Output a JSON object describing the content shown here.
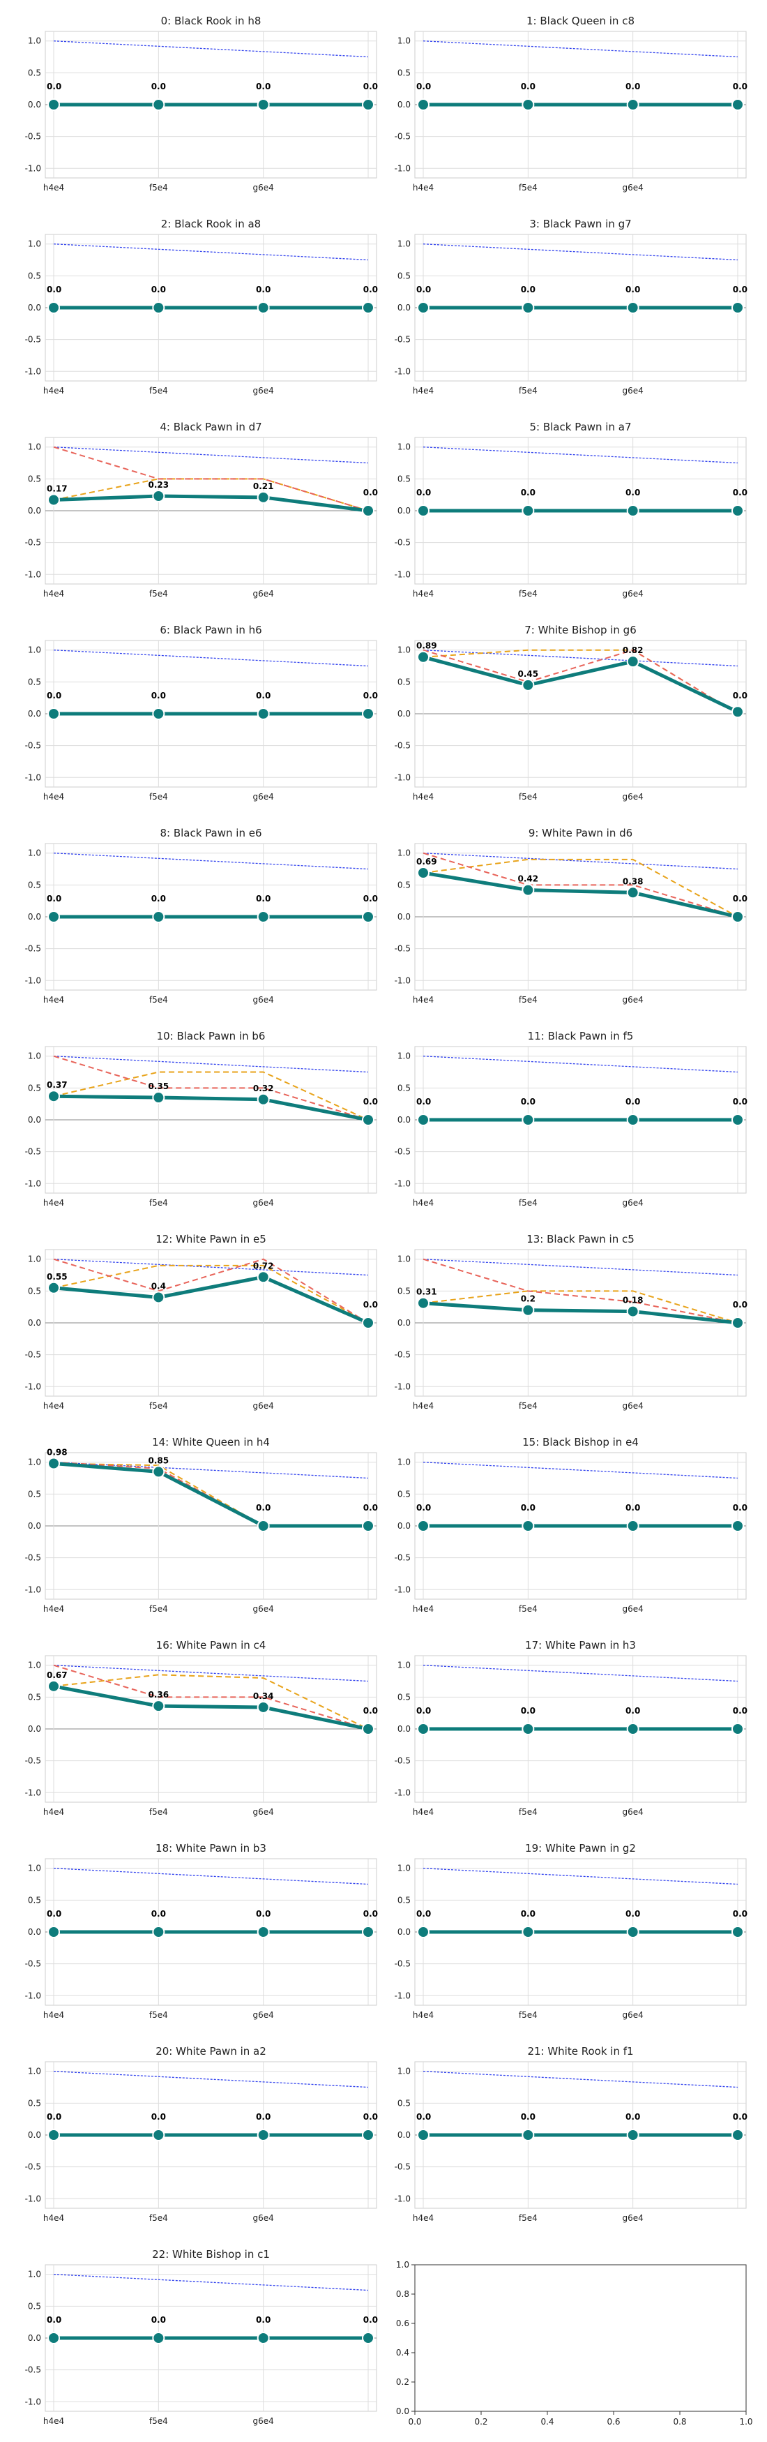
{
  "colors": {
    "main": "#0e7c7b",
    "reference": "#3344ee",
    "series_a": "#e8a31a",
    "series_b": "#e8645a",
    "grid": "#dddddd",
    "zero": "#888888",
    "frame": "#cccccc"
  },
  "chart_data": [
    {
      "type": "line",
      "title": "0: Black Rook in h8",
      "categories": [
        "h4e4",
        "f5e4",
        "g6e4",
        ""
      ],
      "ylim": [
        -1.15,
        1.15
      ],
      "yticks": [
        "1.0",
        "0.5",
        "0.0",
        "-0.5",
        "-1.0"
      ],
      "series": [
        {
          "values": [
            0,
            0,
            0,
            0
          ],
          "labels": [
            "0.0",
            "0.0",
            "0.0",
            "0.0"
          ]
        }
      ],
      "reference_line": [
        1.0,
        0.75
      ]
    },
    {
      "type": "line",
      "title": "1: Black Queen in c8",
      "categories": [
        "h4e4",
        "f5e4",
        "g6e4",
        ""
      ],
      "ylim": [
        -1.15,
        1.15
      ],
      "yticks": [
        "1.0",
        "0.5",
        "0.0",
        "-0.5",
        "-1.0"
      ],
      "series": [
        {
          "values": [
            0,
            0,
            0,
            0
          ],
          "labels": [
            "0.0",
            "0.0",
            "0.0",
            "0.0"
          ]
        }
      ],
      "reference_line": [
        1.0,
        0.75
      ]
    },
    {
      "type": "line",
      "title": "2: Black Rook in a8",
      "categories": [
        "h4e4",
        "f5e4",
        "g6e4",
        ""
      ],
      "ylim": [
        -1.15,
        1.15
      ],
      "yticks": [
        "1.0",
        "0.5",
        "0.0",
        "-0.5",
        "-1.0"
      ],
      "series": [
        {
          "values": [
            0,
            0,
            0,
            0
          ],
          "labels": [
            "0.0",
            "0.0",
            "0.0",
            "0.0"
          ]
        }
      ],
      "reference_line": [
        1.0,
        0.75
      ]
    },
    {
      "type": "line",
      "title": "3: Black Pawn in g7",
      "categories": [
        "h4e4",
        "f5e4",
        "g6e4",
        ""
      ],
      "ylim": [
        -1.15,
        1.15
      ],
      "yticks": [
        "1.0",
        "0.5",
        "0.0",
        "-0.5",
        "-1.0"
      ],
      "series": [
        {
          "values": [
            0,
            0,
            0,
            0
          ],
          "labels": [
            "0.0",
            "0.0",
            "0.0",
            "0.0"
          ]
        }
      ],
      "reference_line": [
        1.0,
        0.75
      ]
    },
    {
      "type": "line",
      "title": "4: Black Pawn in d7",
      "categories": [
        "h4e4",
        "f5e4",
        "g6e4",
        ""
      ],
      "ylim": [
        -1.15,
        1.15
      ],
      "yticks": [
        "1.0",
        "0.5",
        "0.0",
        "-0.5",
        "-1.0"
      ],
      "series": [
        {
          "values": [
            0.17,
            0.23,
            0.21,
            0
          ],
          "labels": [
            "0.17",
            "0.23",
            "0.21",
            "0.0"
          ]
        },
        {
          "values": [
            0.17,
            0.5,
            0.5,
            0
          ]
        },
        {
          "values": [
            1.0,
            0.5,
            0.5,
            0
          ]
        }
      ],
      "reference_line": [
        1.0,
        0.75
      ]
    },
    {
      "type": "line",
      "title": "5: Black Pawn in a7",
      "categories": [
        "h4e4",
        "f5e4",
        "g6e4",
        ""
      ],
      "ylim": [
        -1.15,
        1.15
      ],
      "yticks": [
        "1.0",
        "0.5",
        "0.0",
        "-0.5",
        "-1.0"
      ],
      "series": [
        {
          "values": [
            0,
            0,
            0,
            0
          ],
          "labels": [
            "0.0",
            "0.0",
            "0.0",
            "0.0"
          ]
        }
      ],
      "reference_line": [
        1.0,
        0.75
      ]
    },
    {
      "type": "line",
      "title": "6: Black Pawn in h6",
      "categories": [
        "h4e4",
        "f5e4",
        "g6e4",
        ""
      ],
      "ylim": [
        -1.15,
        1.15
      ],
      "yticks": [
        "1.0",
        "0.5",
        "0.0",
        "-0.5",
        "-1.0"
      ],
      "series": [
        {
          "values": [
            0,
            0,
            0,
            0
          ],
          "labels": [
            "0.0",
            "0.0",
            "0.0",
            "0.0"
          ]
        }
      ],
      "reference_line": [
        1.0,
        0.75
      ]
    },
    {
      "type": "line",
      "title": "7: White Bishop in g6",
      "categories": [
        "h4e4",
        "f5e4",
        "g6e4",
        ""
      ],
      "ylim": [
        -1.15,
        1.15
      ],
      "yticks": [
        "1.0",
        "0.5",
        "0.0",
        "-0.5",
        "-1.0"
      ],
      "series": [
        {
          "values": [
            0.89,
            0.45,
            0.82,
            0.03
          ],
          "labels": [
            "0.89",
            "0.45",
            "0.82",
            "0.0"
          ]
        },
        {
          "values": [
            0.89,
            1.0,
            1.0,
            0
          ]
        },
        {
          "values": [
            1.0,
            0.5,
            1.0,
            0
          ]
        }
      ],
      "reference_line": [
        1.0,
        0.75
      ]
    },
    {
      "type": "line",
      "title": "8: Black Pawn in e6",
      "categories": [
        "h4e4",
        "f5e4",
        "g6e4",
        ""
      ],
      "ylim": [
        -1.15,
        1.15
      ],
      "yticks": [
        "1.0",
        "0.5",
        "0.0",
        "-0.5",
        "-1.0"
      ],
      "series": [
        {
          "values": [
            0,
            0,
            0,
            0
          ],
          "labels": [
            "0.0",
            "0.0",
            "0.0",
            "0.0"
          ]
        }
      ],
      "reference_line": [
        1.0,
        0.75
      ]
    },
    {
      "type": "line",
      "title": "9: White Pawn in d6",
      "categories": [
        "h4e4",
        "f5e4",
        "g6e4",
        ""
      ],
      "ylim": [
        -1.15,
        1.15
      ],
      "yticks": [
        "1.0",
        "0.5",
        "0.0",
        "-0.5",
        "-1.0"
      ],
      "series": [
        {
          "values": [
            0.69,
            0.42,
            0.38,
            0
          ],
          "labels": [
            "0.69",
            "0.42",
            "0.38",
            "0.0"
          ]
        },
        {
          "values": [
            0.69,
            0.9,
            0.9,
            0
          ]
        },
        {
          "values": [
            1.0,
            0.5,
            0.5,
            0
          ]
        }
      ],
      "reference_line": [
        1.0,
        0.75
      ]
    },
    {
      "type": "line",
      "title": "10: Black Pawn in b6",
      "categories": [
        "h4e4",
        "f5e4",
        "g6e4",
        ""
      ],
      "ylim": [
        -1.15,
        1.15
      ],
      "yticks": [
        "1.0",
        "0.5",
        "0.0",
        "-0.5",
        "-1.0"
      ],
      "series": [
        {
          "values": [
            0.37,
            0.35,
            0.32,
            0
          ],
          "labels": [
            "0.37",
            "0.35",
            "0.32",
            "0.0"
          ]
        },
        {
          "values": [
            0.37,
            0.75,
            0.75,
            0
          ]
        },
        {
          "values": [
            1.0,
            0.5,
            0.5,
            0
          ]
        }
      ],
      "reference_line": [
        1.0,
        0.75
      ]
    },
    {
      "type": "line",
      "title": "11: Black Pawn in f5",
      "categories": [
        "h4e4",
        "f5e4",
        "g6e4",
        ""
      ],
      "ylim": [
        -1.15,
        1.15
      ],
      "yticks": [
        "1.0",
        "0.5",
        "0.0",
        "-0.5",
        "-1.0"
      ],
      "series": [
        {
          "values": [
            0,
            0,
            0,
            0
          ],
          "labels": [
            "0.0",
            "0.0",
            "0.0",
            "0.0"
          ]
        }
      ],
      "reference_line": [
        1.0,
        0.75
      ]
    },
    {
      "type": "line",
      "title": "12: White Pawn in e5",
      "categories": [
        "h4e4",
        "f5e4",
        "g6e4",
        ""
      ],
      "ylim": [
        -1.15,
        1.15
      ],
      "yticks": [
        "1.0",
        "0.5",
        "0.0",
        "-0.5",
        "-1.0"
      ],
      "series": [
        {
          "values": [
            0.55,
            0.4,
            0.72,
            0
          ],
          "labels": [
            "0.55",
            "0.4",
            "0.72",
            "0.0"
          ]
        },
        {
          "values": [
            0.55,
            0.9,
            0.9,
            0
          ]
        },
        {
          "values": [
            1.0,
            0.5,
            1.0,
            0
          ]
        }
      ],
      "reference_line": [
        1.0,
        0.75
      ]
    },
    {
      "type": "line",
      "title": "13: Black Pawn in c5",
      "categories": [
        "h4e4",
        "f5e4",
        "g6e4",
        ""
      ],
      "ylim": [
        -1.15,
        1.15
      ],
      "yticks": [
        "1.0",
        "0.5",
        "0.0",
        "-0.5",
        "-1.0"
      ],
      "series": [
        {
          "values": [
            0.31,
            0.2,
            0.18,
            0
          ],
          "labels": [
            "0.31",
            "0.2",
            "0.18",
            "0.0"
          ]
        },
        {
          "values": [
            0.31,
            0.5,
            0.5,
            0
          ]
        },
        {
          "values": [
            1.0,
            0.5,
            0.33,
            0
          ]
        }
      ],
      "reference_line": [
        1.0,
        0.75
      ]
    },
    {
      "type": "line",
      "title": "14: White Queen in h4",
      "categories": [
        "h4e4",
        "f5e4",
        "g6e4",
        ""
      ],
      "ylim": [
        -1.15,
        1.15
      ],
      "yticks": [
        "1.0",
        "0.5",
        "0.0",
        "-0.5",
        "-1.0"
      ],
      "series": [
        {
          "values": [
            0.98,
            0.85,
            0,
            0
          ],
          "labels": [
            "0.98",
            "0.85",
            "0.0",
            "0.0"
          ]
        },
        {
          "values": [
            0.98,
            0.95,
            0,
            0
          ]
        },
        {
          "values": [
            1.0,
            0.9,
            0,
            0
          ]
        }
      ],
      "reference_line": [
        1.0,
        0.75
      ]
    },
    {
      "type": "line",
      "title": "15: Black Bishop in e4",
      "categories": [
        "h4e4",
        "f5e4",
        "g6e4",
        ""
      ],
      "ylim": [
        -1.15,
        1.15
      ],
      "yticks": [
        "1.0",
        "0.5",
        "0.0",
        "-0.5",
        "-1.0"
      ],
      "series": [
        {
          "values": [
            0,
            0,
            0,
            0
          ],
          "labels": [
            "0.0",
            "0.0",
            "0.0",
            "0.0"
          ]
        }
      ],
      "reference_line": [
        1.0,
        0.75
      ]
    },
    {
      "type": "line",
      "title": "16: White Pawn in c4",
      "categories": [
        "h4e4",
        "f5e4",
        "g6e4",
        ""
      ],
      "ylim": [
        -1.15,
        1.15
      ],
      "yticks": [
        "1.0",
        "0.5",
        "0.0",
        "-0.5",
        "-1.0"
      ],
      "series": [
        {
          "values": [
            0.67,
            0.36,
            0.34,
            0
          ],
          "labels": [
            "0.67",
            "0.36",
            "0.34",
            "0.0"
          ]
        },
        {
          "values": [
            0.67,
            0.85,
            0.8,
            0
          ]
        },
        {
          "values": [
            1.0,
            0.5,
            0.5,
            0
          ]
        }
      ],
      "reference_line": [
        1.0,
        0.75
      ]
    },
    {
      "type": "line",
      "title": "17: White Pawn in h3",
      "categories": [
        "h4e4",
        "f5e4",
        "g6e4",
        ""
      ],
      "ylim": [
        -1.15,
        1.15
      ],
      "yticks": [
        "1.0",
        "0.5",
        "0.0",
        "-0.5",
        "-1.0"
      ],
      "series": [
        {
          "values": [
            0,
            0,
            0,
            0
          ],
          "labels": [
            "0.0",
            "0.0",
            "0.0",
            "0.0"
          ]
        }
      ],
      "reference_line": [
        1.0,
        0.75
      ]
    },
    {
      "type": "line",
      "title": "18: White Pawn in b3",
      "categories": [
        "h4e4",
        "f5e4",
        "g6e4",
        ""
      ],
      "ylim": [
        -1.15,
        1.15
      ],
      "yticks": [
        "1.0",
        "0.5",
        "0.0",
        "-0.5",
        "-1.0"
      ],
      "series": [
        {
          "values": [
            0,
            0,
            0,
            0
          ],
          "labels": [
            "0.0",
            "0.0",
            "0.0",
            "0.0"
          ]
        }
      ],
      "reference_line": [
        1.0,
        0.75
      ]
    },
    {
      "type": "line",
      "title": "19: White Pawn in g2",
      "categories": [
        "h4e4",
        "f5e4",
        "g6e4",
        ""
      ],
      "ylim": [
        -1.15,
        1.15
      ],
      "yticks": [
        "1.0",
        "0.5",
        "0.0",
        "-0.5",
        "-1.0"
      ],
      "series": [
        {
          "values": [
            0,
            0,
            0,
            0
          ],
          "labels": [
            "0.0",
            "0.0",
            "0.0",
            "0.0"
          ]
        }
      ],
      "reference_line": [
        1.0,
        0.75
      ]
    },
    {
      "type": "line",
      "title": "20: White Pawn in a2",
      "categories": [
        "h4e4",
        "f5e4",
        "g6e4",
        ""
      ],
      "ylim": [
        -1.15,
        1.15
      ],
      "yticks": [
        "1.0",
        "0.5",
        "0.0",
        "-0.5",
        "-1.0"
      ],
      "series": [
        {
          "values": [
            0,
            0,
            0,
            0
          ],
          "labels": [
            "0.0",
            "0.0",
            "0.0",
            "0.0"
          ]
        }
      ],
      "reference_line": [
        1.0,
        0.75
      ]
    },
    {
      "type": "line",
      "title": "21: White Rook in f1",
      "categories": [
        "h4e4",
        "f5e4",
        "g6e4",
        ""
      ],
      "ylim": [
        -1.15,
        1.15
      ],
      "yticks": [
        "1.0",
        "0.5",
        "0.0",
        "-0.5",
        "-1.0"
      ],
      "series": [
        {
          "values": [
            0,
            0,
            0,
            0
          ],
          "labels": [
            "0.0",
            "0.0",
            "0.0",
            "0.0"
          ]
        }
      ],
      "reference_line": [
        1.0,
        0.75
      ]
    },
    {
      "type": "line",
      "title": "22: White Bishop in c1",
      "categories": [
        "h4e4",
        "f5e4",
        "g6e4",
        ""
      ],
      "ylim": [
        -1.15,
        1.15
      ],
      "yticks": [
        "1.0",
        "0.5",
        "0.0",
        "-0.5",
        "-1.0"
      ],
      "series": [
        {
          "values": [
            0,
            0,
            0,
            0
          ],
          "labels": [
            "0.0",
            "0.0",
            "0.0",
            "0.0"
          ]
        }
      ],
      "reference_line": [
        1.0,
        0.75
      ]
    },
    {
      "type": "line",
      "title": "",
      "categories": [],
      "xlim": [
        0,
        1
      ],
      "ylim": [
        0,
        1
      ],
      "xticks": [
        "0.0",
        "0.2",
        "0.4",
        "0.6",
        "0.8",
        "1.0"
      ],
      "yticks": [
        "0.0",
        "0.2",
        "0.4",
        "0.6",
        "0.8",
        "1.0"
      ],
      "series": []
    }
  ]
}
